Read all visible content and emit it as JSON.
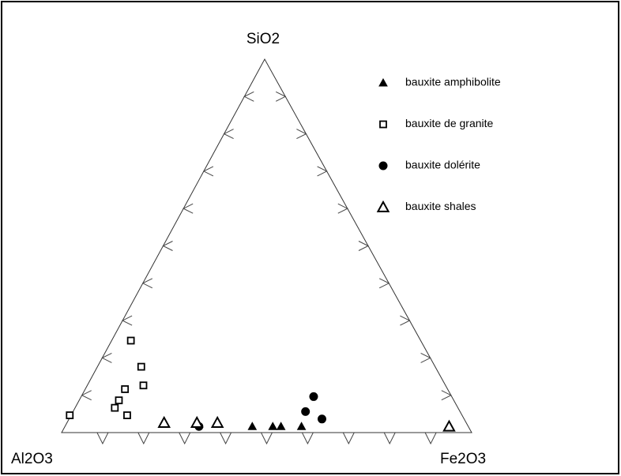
{
  "chart_data": {
    "type": "ternary",
    "axes": [
      "SiO2",
      "Al2O3",
      "Fe2O3"
    ],
    "ticks": [
      10,
      20,
      30,
      40,
      50,
      60,
      70,
      80,
      90
    ],
    "series": [
      {
        "name": "bauxite amphibolite",
        "marker": "triangle-filled",
        "color": "#000000",
        "values": [
          [
            1,
            53,
            46
          ],
          [
            1,
            48,
            51
          ],
          [
            1,
            46,
            53
          ],
          [
            1,
            41,
            58
          ]
        ]
      },
      {
        "name": "bauxite de granite",
        "marker": "square-open",
        "color": "#000000",
        "values": [
          [
            24,
            71,
            5
          ],
          [
            17,
            72,
            11
          ],
          [
            12,
            74,
            14
          ],
          [
            11,
            79,
            10
          ],
          [
            8,
            82,
            10
          ],
          [
            6,
            84,
            10
          ],
          [
            4,
            82,
            14
          ],
          [
            4,
            96,
            0
          ]
        ]
      },
      {
        "name": "bauxite dolérite",
        "marker": "circle-filled",
        "color": "#000000",
        "values": [
          [
            1,
            66,
            33
          ],
          [
            9,
            34,
            57
          ],
          [
            5,
            38,
            57
          ],
          [
            3,
            35,
            62
          ]
        ]
      },
      {
        "name": "bauxite shales",
        "marker": "triangle-open",
        "color": "#000000",
        "values": [
          [
            2,
            74,
            24
          ],
          [
            2,
            66,
            32
          ],
          [
            2,
            61,
            37
          ],
          [
            1,
            5,
            94
          ]
        ]
      }
    ]
  }
}
